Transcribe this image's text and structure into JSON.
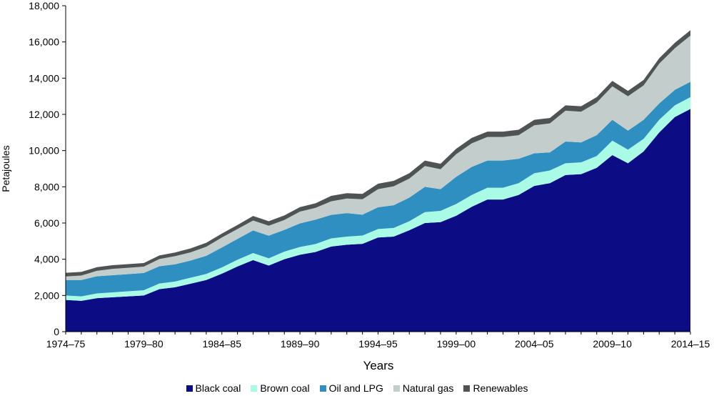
{
  "chart_data": {
    "type": "area",
    "stacked": true,
    "title": "",
    "xlabel": "Years",
    "ylabel": "Petajoules",
    "ylim": [
      0,
      18000
    ],
    "yticks": [
      0,
      2000,
      4000,
      6000,
      8000,
      10000,
      12000,
      14000,
      16000,
      18000
    ],
    "ytick_labels": [
      "0",
      "2,000",
      "4,000",
      "6,000",
      "8,000",
      "10,000",
      "12,000",
      "14,000",
      "16,000",
      "18,000"
    ],
    "x": [
      "1974–75",
      "1975–76",
      "1976–77",
      "1977–78",
      "1978–79",
      "1979–80",
      "1980–81",
      "1981–82",
      "1982–83",
      "1983–84",
      "1984–85",
      "1985–86",
      "1986–87",
      "1987–88",
      "1988–89",
      "1989–90",
      "1990–91",
      "1991–92",
      "1992–93",
      "1993–94",
      "1994–95",
      "1995–96",
      "1996–97",
      "1997–98",
      "1998–99",
      "1999–00",
      "2000–01",
      "2001–02",
      "2002–03",
      "2003–04",
      "2004–05",
      "2005–06",
      "2006–07",
      "2007–08",
      "2008–09",
      "2009–10",
      "2010–11",
      "2011–12",
      "2012–13",
      "2013–14",
      "2014–15"
    ],
    "xtick_labels": [
      "1974–75",
      "1979–80",
      "1984–85",
      "1989–90",
      "1994–95",
      "1999–00",
      "2004–05",
      "2009–10",
      "2014–15"
    ],
    "grid": false,
    "legend_position": "bottom",
    "series": [
      {
        "name": "Black coal",
        "color": "#0c0c85",
        "values": [
          1750,
          1700,
          1850,
          1900,
          1950,
          2000,
          2350,
          2450,
          2650,
          2850,
          3200,
          3600,
          3950,
          3650,
          4000,
          4250,
          4400,
          4700,
          4800,
          4850,
          5200,
          5250,
          5600,
          6000,
          6050,
          6400,
          6900,
          7300,
          7300,
          7550,
          8050,
          8200,
          8650,
          8700,
          9050,
          9750,
          9300,
          9950,
          11000,
          11850,
          12300
        ]
      },
      {
        "name": "Brown coal",
        "color": "#a9fbe6",
        "values": [
          250,
          250,
          260,
          270,
          280,
          290,
          310,
          320,
          330,
          340,
          350,
          370,
          390,
          400,
          420,
          430,
          440,
          450,
          450,
          460,
          470,
          480,
          500,
          600,
          620,
          650,
          650,
          650,
          650,
          650,
          700,
          700,
          650,
          650,
          650,
          800,
          750,
          700,
          700,
          650,
          650
        ]
      },
      {
        "name": "Oil and LPG",
        "color": "#2e8fc0",
        "values": [
          850,
          900,
          950,
          950,
          950,
          950,
          950,
          950,
          950,
          1000,
          1100,
          1150,
          1250,
          1250,
          1200,
          1300,
          1350,
          1300,
          1300,
          1150,
          1200,
          1250,
          1300,
          1400,
          1200,
          1500,
          1550,
          1500,
          1500,
          1350,
          1100,
          1000,
          1200,
          1100,
          1150,
          1150,
          1050,
          1050,
          900,
          850,
          850
        ]
      },
      {
        "name": "Natural gas",
        "color": "#c2cdcc",
        "values": [
          200,
          250,
          300,
          350,
          350,
          350,
          400,
          450,
          450,
          500,
          550,
          550,
          550,
          550,
          550,
          650,
          650,
          750,
          800,
          850,
          1000,
          1050,
          1050,
          1150,
          1100,
          1250,
          1300,
          1300,
          1300,
          1300,
          1550,
          1600,
          1700,
          1700,
          1800,
          1850,
          1900,
          1900,
          2200,
          2300,
          2550
        ]
      },
      {
        "name": "Renewables",
        "color": "#4f5354",
        "values": [
          200,
          200,
          200,
          200,
          200,
          200,
          200,
          200,
          220,
          220,
          220,
          220,
          250,
          250,
          250,
          250,
          250,
          300,
          300,
          300,
          300,
          300,
          300,
          300,
          300,
          300,
          300,
          300,
          300,
          300,
          300,
          300,
          300,
          300,
          300,
          300,
          300,
          300,
          300,
          300,
          300
        ]
      }
    ]
  }
}
